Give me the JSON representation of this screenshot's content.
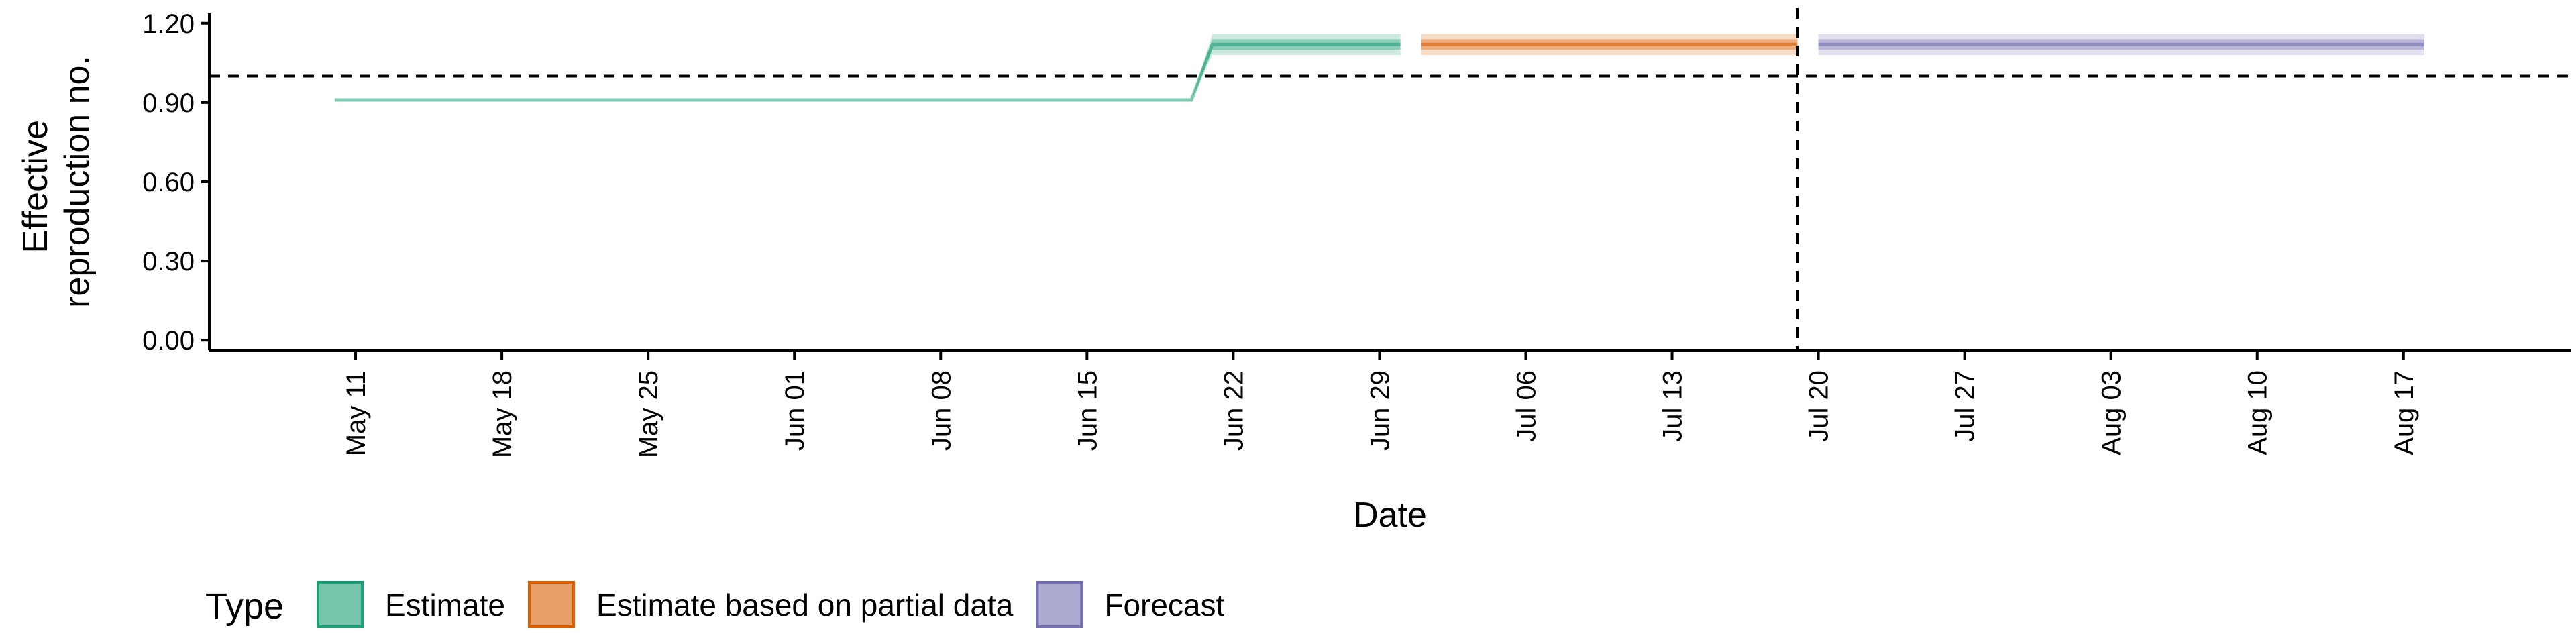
{
  "chart_data": {
    "type": "line",
    "xlabel": "Date",
    "ylabel": [
      "Effective",
      "reproduction no."
    ],
    "ylim": [
      0,
      1.2
    ],
    "yticks": [
      0.0,
      0.3,
      0.6,
      0.9,
      1.2
    ],
    "ytick_labels": [
      "0.00",
      "0.30",
      "0.60",
      "0.90",
      "1.20"
    ],
    "xlim": [
      "2020-05-04",
      "2020-08-25"
    ],
    "xticks": [
      "2020-05-11",
      "2020-05-18",
      "2020-05-25",
      "2020-06-01",
      "2020-06-08",
      "2020-06-15",
      "2020-06-22",
      "2020-06-29",
      "2020-07-06",
      "2020-07-13",
      "2020-07-20",
      "2020-07-27",
      "2020-08-03",
      "2020-08-10",
      "2020-08-17"
    ],
    "xtick_labels": [
      "May 11",
      "May 18",
      "May 25",
      "Jun 01",
      "Jun 08",
      "Jun 15",
      "Jun 22",
      "Jun 29",
      "Jul 06",
      "Jul 13",
      "Jul 20",
      "Jul 27",
      "Aug 03",
      "Aug 10",
      "Aug 17"
    ],
    "reference_lines": {
      "horizontal_y": 1.0,
      "vertical_date": "2020-07-19",
      "style": "dashed"
    },
    "legend": {
      "title": "Type",
      "position": "bottom-left"
    },
    "series": [
      {
        "name": "Estimate",
        "color": "#1B9E77",
        "points": [
          {
            "date": "2020-05-10",
            "median": 0.91,
            "inner": [
              0.91,
              0.91
            ],
            "outer": [
              0.91,
              0.91
            ]
          },
          {
            "date": "2020-06-20",
            "median": 0.91,
            "inner": [
              0.91,
              0.91
            ],
            "outer": [
              0.91,
              0.91
            ]
          },
          {
            "date": "2020-06-21",
            "median": 1.12,
            "inner": [
              1.1,
              1.14
            ],
            "outer": [
              1.08,
              1.16
            ]
          },
          {
            "date": "2020-06-30",
            "median": 1.12,
            "inner": [
              1.1,
              1.14
            ],
            "outer": [
              1.08,
              1.16
            ]
          }
        ]
      },
      {
        "name": "Estimate based on partial data",
        "color": "#D95F02",
        "points": [
          {
            "date": "2020-07-01",
            "median": 1.12,
            "inner": [
              1.1,
              1.14
            ],
            "outer": [
              1.08,
              1.16
            ]
          },
          {
            "date": "2020-07-19",
            "median": 1.12,
            "inner": [
              1.1,
              1.14
            ],
            "outer": [
              1.08,
              1.16
            ]
          }
        ]
      },
      {
        "name": "Forecast",
        "color": "#7570B3",
        "points": [
          {
            "date": "2020-07-20",
            "median": 1.12,
            "inner": [
              1.1,
              1.14
            ],
            "outer": [
              1.08,
              1.16
            ]
          },
          {
            "date": "2020-08-18",
            "median": 1.12,
            "inner": [
              1.1,
              1.14
            ],
            "outer": [
              1.08,
              1.16
            ]
          }
        ]
      }
    ]
  }
}
